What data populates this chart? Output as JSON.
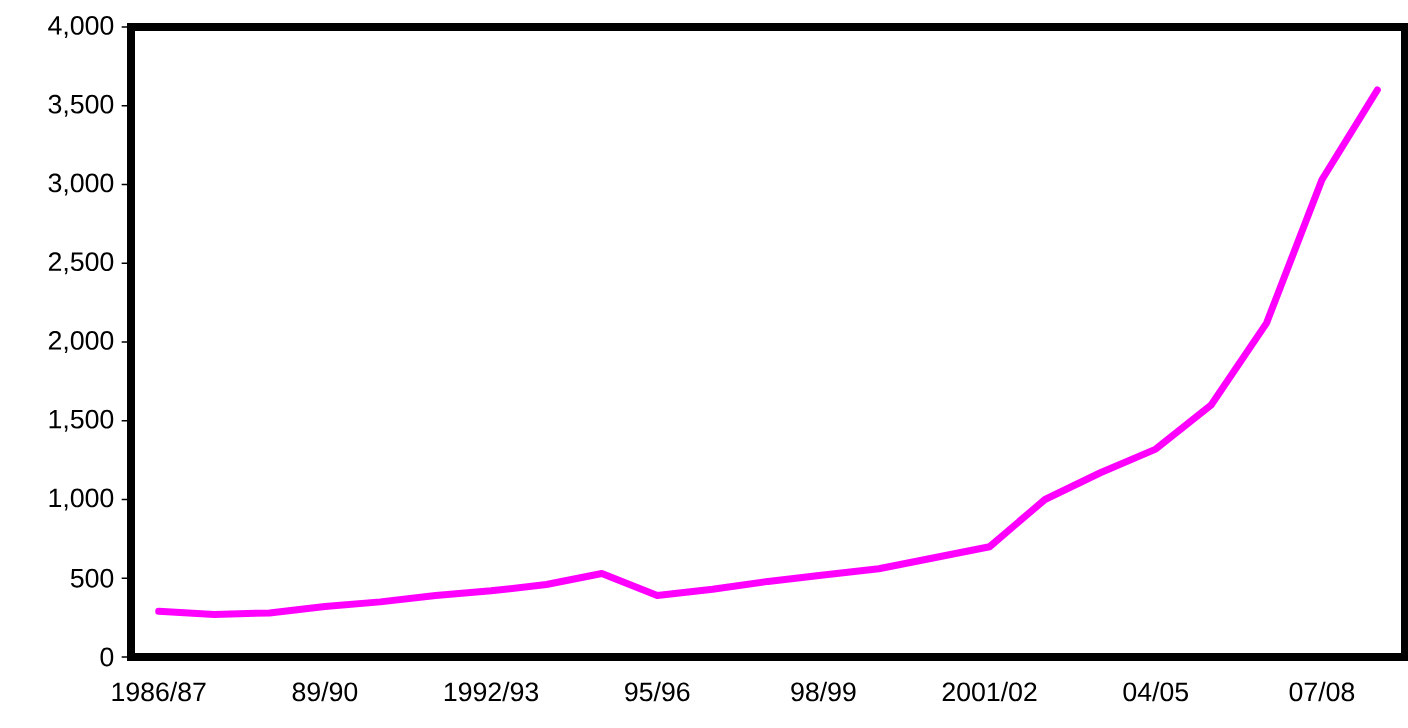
{
  "chart_data": {
    "type": "line",
    "categories": [
      "1986/87",
      null,
      null,
      "89/90",
      null,
      null,
      "1992/93",
      null,
      null,
      "95/96",
      null,
      null,
      "98/99",
      null,
      null,
      "2001/02",
      null,
      null,
      "04/05",
      null,
      null,
      "07/08",
      null
    ],
    "series": [
      {
        "color": "#ff00ff",
        "values": [
          290,
          270,
          280,
          320,
          350,
          390,
          420,
          460,
          530,
          390,
          430,
          480,
          520,
          560,
          630,
          700,
          1000,
          1170,
          1320,
          1600,
          2120,
          3030,
          3600
        ]
      }
    ],
    "ylim": [
      0,
      4000
    ],
    "yticks": [
      0,
      500,
      {
        "value": 1000,
        "label": "1,000"
      },
      {
        "value": 1500,
        "label": "1,500"
      },
      {
        "value": 2000,
        "label": "2,000"
      },
      {
        "value": 2500,
        "label": "2,500"
      },
      {
        "value": 3000,
        "label": "3,000"
      },
      {
        "value": 3500,
        "label": "3,500"
      },
      {
        "value": 4000,
        "label": "4,000"
      }
    ]
  }
}
